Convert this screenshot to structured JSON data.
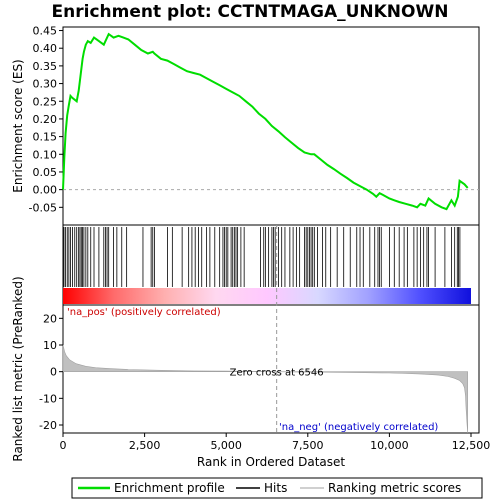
{
  "chart_data": {
    "type": "line",
    "title": "Enrichment plot: CCTNTMAGA_UNKNOWN",
    "xlabel": "Rank in Ordered Dataset",
    "xlim": [
      0,
      12500
    ],
    "x_ticks": [
      "0",
      "2,500",
      "5,000",
      "7,500",
      "10,000",
      "12,500"
    ],
    "x_tick_values": [
      0,
      2500,
      5000,
      7500,
      10000,
      12500
    ],
    "top_panel": {
      "ylabel": "Enrichment score (ES)",
      "ylim": [
        -0.1,
        0.46
      ],
      "y_ticks": [
        "-0.05",
        "0.00",
        "0.05",
        "0.10",
        "0.15",
        "0.20",
        "0.25",
        "0.30",
        "0.35",
        "0.40",
        "0.45"
      ],
      "y_tick_values": [
        -0.05,
        0.0,
        0.05,
        0.1,
        0.15,
        0.2,
        0.25,
        0.3,
        0.35,
        0.4,
        0.45
      ],
      "series_color": "#00dd00",
      "es_profile": {
        "x": [
          0,
          40,
          80,
          130,
          180,
          230,
          280,
          420,
          480,
          520,
          560,
          600,
          640,
          700,
          760,
          850,
          950,
          1100,
          1250,
          1400,
          1550,
          1700,
          1850,
          2000,
          2200,
          2400,
          2600,
          2750,
          2800,
          3000,
          3200,
          3400,
          3600,
          3800,
          4000,
          4200,
          4400,
          4600,
          4800,
          5000,
          5200,
          5400,
          5600,
          5800,
          6000,
          6200,
          6400,
          6600,
          6800,
          7000,
          7200,
          7400,
          7600,
          7700,
          7900,
          8100,
          8300,
          8500,
          8700,
          8900,
          9100,
          9300,
          9500,
          9600,
          9700,
          9800,
          10000,
          10150,
          10300,
          10500,
          10700,
          10850,
          10950,
          11100,
          11200,
          11400,
          11600,
          11750,
          11900,
          12000,
          12100,
          12150,
          12300,
          12400
        ],
        "y": [
          0.0,
          0.09,
          0.16,
          0.21,
          0.24,
          0.265,
          0.26,
          0.25,
          0.28,
          0.31,
          0.34,
          0.37,
          0.39,
          0.41,
          0.42,
          0.415,
          0.43,
          0.42,
          0.41,
          0.44,
          0.43,
          0.435,
          0.43,
          0.425,
          0.41,
          0.395,
          0.385,
          0.39,
          0.385,
          0.37,
          0.365,
          0.355,
          0.345,
          0.335,
          0.33,
          0.325,
          0.315,
          0.305,
          0.295,
          0.285,
          0.275,
          0.265,
          0.25,
          0.235,
          0.215,
          0.2,
          0.18,
          0.165,
          0.148,
          0.133,
          0.118,
          0.105,
          0.1,
          0.1,
          0.085,
          0.07,
          0.058,
          0.045,
          0.033,
          0.02,
          0.01,
          0.0,
          -0.012,
          -0.02,
          -0.01,
          -0.015,
          -0.025,
          -0.03,
          -0.035,
          -0.04,
          -0.045,
          -0.05,
          -0.04,
          -0.045,
          -0.025,
          -0.04,
          -0.05,
          -0.055,
          -0.03,
          -0.045,
          -0.02,
          0.025,
          0.015,
          0.005
        ]
      }
    },
    "hits_panel": {
      "hit_color": "#000000",
      "hit_ranks": [
        30,
        80,
        130,
        180,
        230,
        290,
        360,
        420,
        480,
        520,
        560,
        600,
        640,
        700,
        760,
        850,
        950,
        1100,
        1250,
        1300,
        1350,
        1400,
        1550,
        1650,
        1800,
        1950,
        2450,
        2700,
        2750,
        2800,
        3200,
        3350,
        3650,
        3850,
        3950,
        4050,
        4150,
        4250,
        4400,
        4500,
        4650,
        4800,
        4900,
        4950,
        5000,
        5050,
        5150,
        5200,
        5250,
        5300,
        5350,
        5450,
        5550,
        6050,
        6150,
        6200,
        6300,
        6400,
        6450,
        6500,
        6600,
        6700,
        6800,
        6950,
        7050,
        7150,
        7250,
        7400,
        7450,
        7500,
        7550,
        7600,
        7650,
        7700,
        7800,
        7950,
        8050,
        8200,
        8400,
        8600,
        8800,
        9000,
        9100,
        9200,
        9400,
        9550,
        9650,
        9700,
        9750,
        10000,
        10150,
        10300,
        10450,
        10550,
        10750,
        10850,
        10950,
        11050,
        11150,
        11200,
        11400,
        11700,
        11900,
        12000,
        12080,
        12120,
        12160
      ],
      "heatmap_gradient": [
        "#ff0000",
        "#ff6b6b",
        "#ffb0b0",
        "#ffd8f0",
        "#ffc8ff",
        "#d8d8ff",
        "#a0a0ff",
        "#5050ff",
        "#1010dd"
      ]
    },
    "bottom_panel": {
      "ylabel": "Ranked list metric (PreRanked)",
      "ylim": [
        -23,
        25
      ],
      "y_ticks": [
        "-20",
        "-10",
        "0",
        "10",
        "20"
      ],
      "y_tick_values": [
        -20,
        -10,
        0,
        10,
        20
      ],
      "fill_color": "#c0c0c0",
      "metric_profile": {
        "x": [
          0,
          50,
          100,
          200,
          400,
          700,
          1000,
          1500,
          2000,
          3000,
          4000,
          5000,
          6000,
          6546,
          7000,
          8000,
          9000,
          10000,
          10500,
          11000,
          11500,
          11800,
          12000,
          12150,
          12250,
          12300,
          12330,
          12350,
          12380,
          12400
        ],
        "y": [
          10,
          7.5,
          6,
          4.5,
          3,
          2,
          1.5,
          1.1,
          0.8,
          0.5,
          0.3,
          0.2,
          0.1,
          0.0,
          -0.1,
          -0.2,
          -0.35,
          -0.5,
          -0.7,
          -0.9,
          -1.3,
          -1.8,
          -2.5,
          -3.3,
          -4.5,
          -6,
          -9,
          -14,
          -20,
          -23
        ]
      },
      "zero_cross_rank": 6546,
      "zero_cross_label": "Zero cross at 6546",
      "pos_label": "'na_pos' (positively correlated)",
      "neg_label": "'na_neg' (negatively correlated)"
    },
    "legend": {
      "placement": "bottom",
      "entries": [
        {
          "label": "Enrichment profile",
          "color": "#00dd00"
        },
        {
          "label": "Hits",
          "color": "#000000"
        },
        {
          "label": "Ranking metric scores",
          "color": "#c0c0c0"
        }
      ]
    }
  }
}
